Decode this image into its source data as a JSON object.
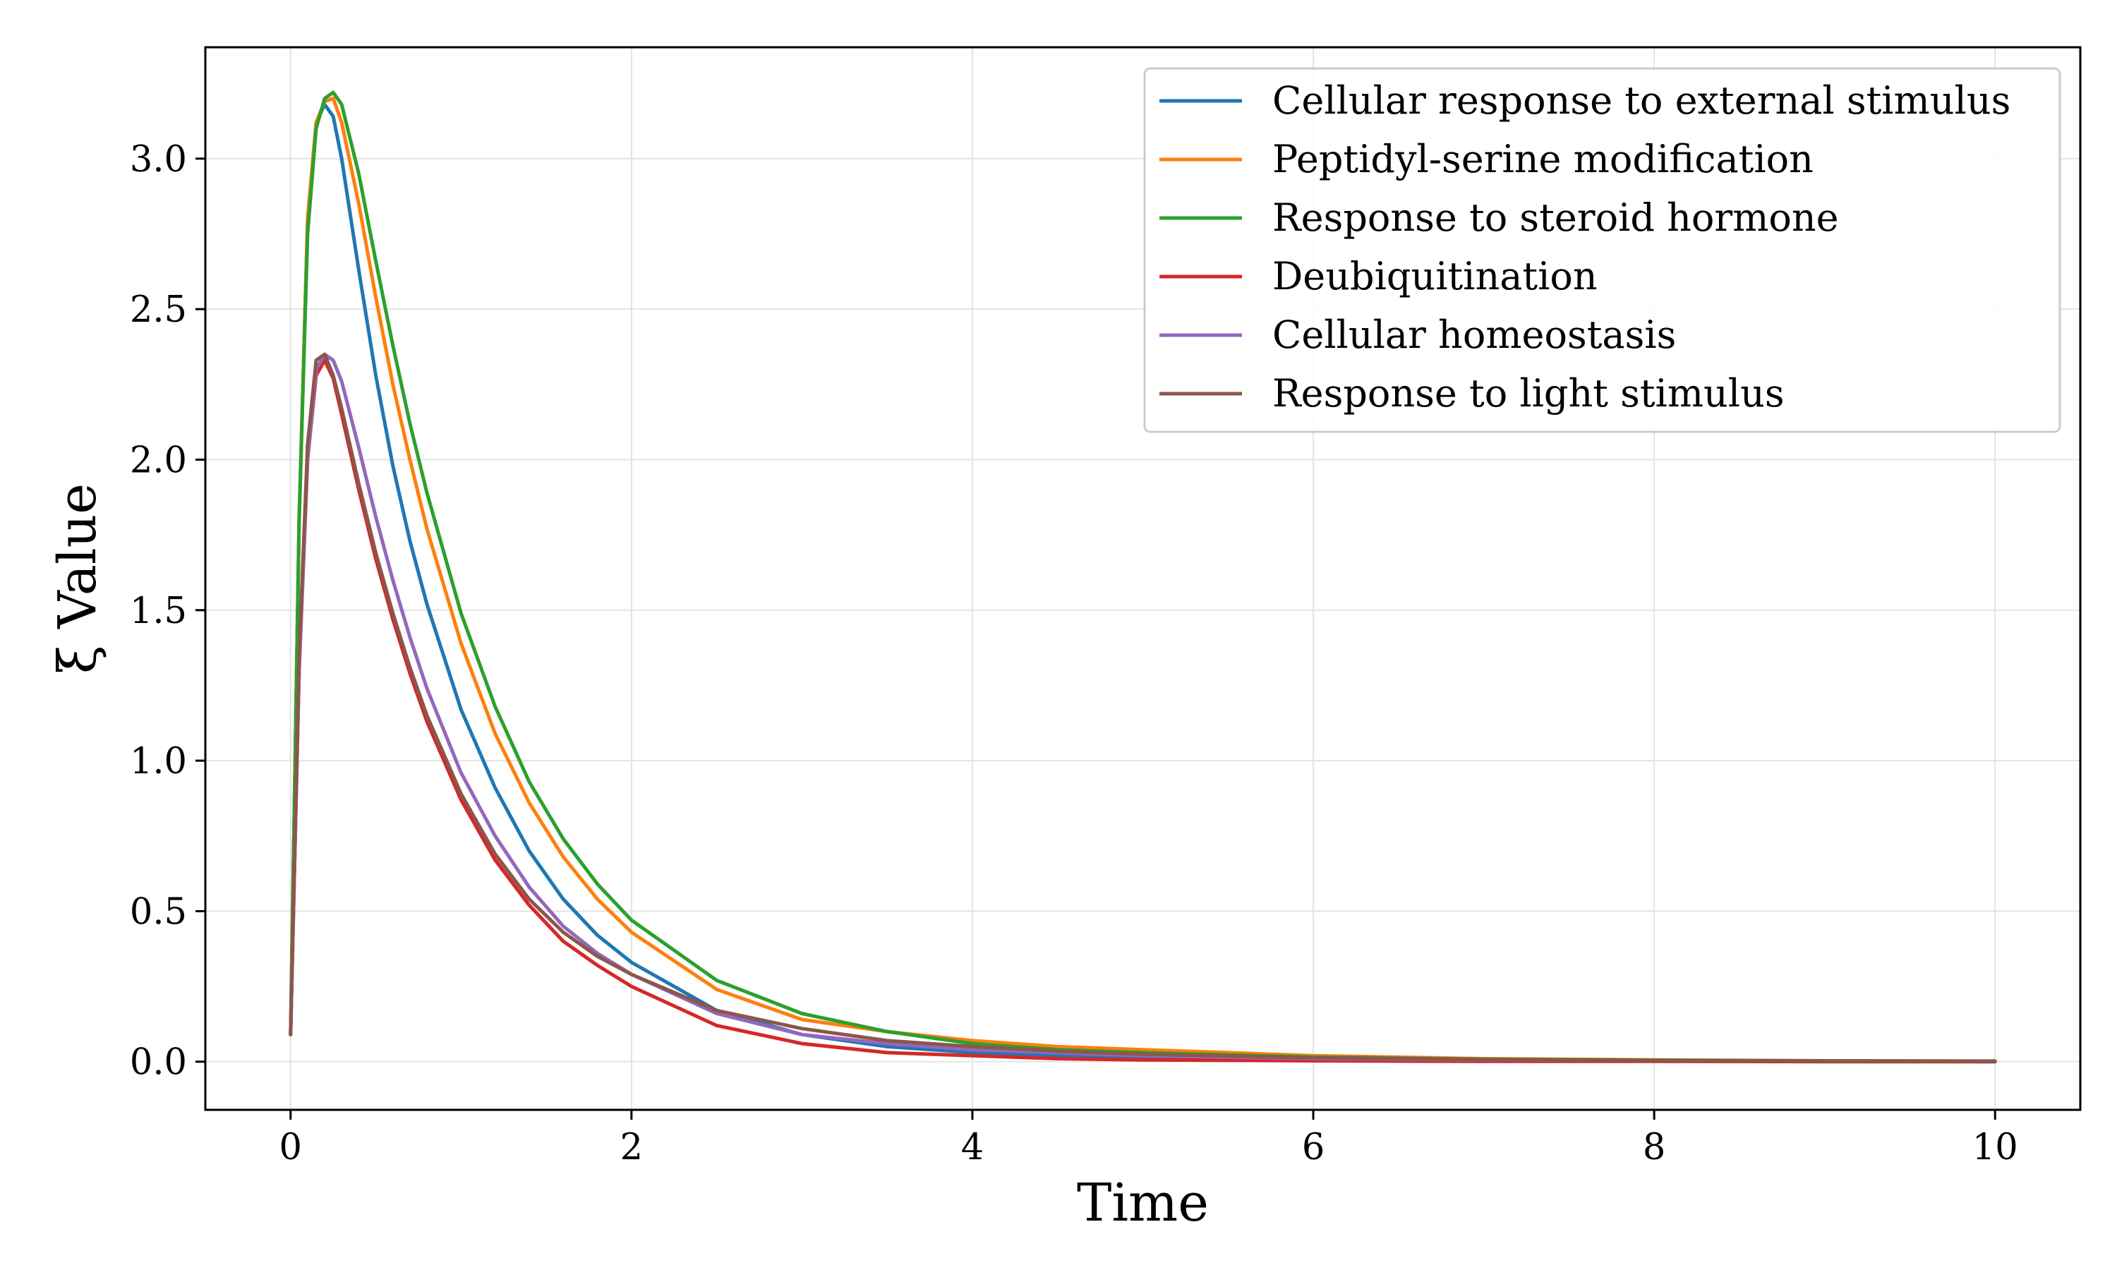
{
  "chart_data": {
    "type": "line",
    "xlabel": "Time",
    "ylabel": "ξ Value",
    "xlim": [
      -0.5,
      10.5
    ],
    "ylim": [
      -0.16,
      3.37
    ],
    "xticks": [
      0,
      2,
      4,
      6,
      8,
      10
    ],
    "xtick_labels": [
      "0",
      "2",
      "4",
      "6",
      "8",
      "10"
    ],
    "yticks": [
      0.0,
      0.5,
      1.0,
      1.5,
      2.0,
      2.5,
      3.0
    ],
    "ytick_labels": [
      "0.0",
      "0.5",
      "1.0",
      "1.5",
      "2.0",
      "2.5",
      "3.0"
    ],
    "grid": true,
    "legend_position": "top-right",
    "series": [
      {
        "name": "Cellular response to external stimulus",
        "color": "#1f77b4",
        "x": [
          0.0,
          0.05,
          0.1,
          0.15,
          0.2,
          0.25,
          0.3,
          0.4,
          0.5,
          0.6,
          0.7,
          0.8,
          1.0,
          1.2,
          1.4,
          1.6,
          1.8,
          2.0,
          2.5,
          3.0,
          3.5,
          4.0,
          4.5,
          5.0,
          6.0,
          7.0,
          8.0,
          9.0,
          10.0
        ],
        "y": [
          0.09,
          1.8,
          2.8,
          3.12,
          3.18,
          3.14,
          3.0,
          2.63,
          2.28,
          1.98,
          1.73,
          1.52,
          1.17,
          0.91,
          0.7,
          0.54,
          0.42,
          0.33,
          0.17,
          0.09,
          0.05,
          0.03,
          0.02,
          0.01,
          0.005,
          0.003,
          0.002,
          0.001,
          0.0
        ]
      },
      {
        "name": "Peptidyl-serine modification",
        "color": "#ff7f0e",
        "x": [
          0.0,
          0.05,
          0.1,
          0.15,
          0.2,
          0.25,
          0.3,
          0.4,
          0.5,
          0.6,
          0.7,
          0.8,
          1.0,
          1.2,
          1.4,
          1.6,
          1.8,
          2.0,
          2.5,
          3.0,
          3.5,
          4.0,
          4.5,
          5.0,
          6.0,
          7.0,
          8.0,
          9.0,
          10.0
        ],
        "y": [
          0.09,
          1.8,
          2.8,
          3.12,
          3.19,
          3.2,
          3.12,
          2.85,
          2.54,
          2.25,
          2.0,
          1.77,
          1.39,
          1.09,
          0.86,
          0.68,
          0.54,
          0.43,
          0.24,
          0.14,
          0.1,
          0.07,
          0.05,
          0.04,
          0.02,
          0.01,
          0.006,
          0.003,
          0.002
        ]
      },
      {
        "name": "Response to steroid hormone",
        "color": "#2ca02c",
        "x": [
          0.0,
          0.05,
          0.1,
          0.15,
          0.2,
          0.25,
          0.3,
          0.4,
          0.5,
          0.6,
          0.7,
          0.8,
          1.0,
          1.2,
          1.4,
          1.6,
          1.8,
          2.0,
          2.5,
          3.0,
          3.5,
          4.0,
          4.5,
          5.0,
          6.0,
          7.0,
          8.0,
          9.0,
          10.0
        ],
        "y": [
          0.09,
          1.8,
          2.75,
          3.1,
          3.2,
          3.22,
          3.18,
          2.95,
          2.66,
          2.38,
          2.12,
          1.89,
          1.49,
          1.18,
          0.93,
          0.74,
          0.59,
          0.47,
          0.27,
          0.16,
          0.1,
          0.06,
          0.04,
          0.03,
          0.015,
          0.008,
          0.005,
          0.003,
          0.002
        ]
      },
      {
        "name": "Deubiquitination",
        "color": "#d62728",
        "x": [
          0.0,
          0.05,
          0.1,
          0.15,
          0.2,
          0.25,
          0.3,
          0.4,
          0.5,
          0.6,
          0.7,
          0.8,
          1.0,
          1.2,
          1.4,
          1.6,
          1.8,
          2.0,
          2.5,
          3.0,
          3.5,
          4.0,
          4.5,
          5.0,
          6.0,
          7.0,
          8.0,
          9.0,
          10.0
        ],
        "y": [
          0.09,
          1.3,
          2.0,
          2.28,
          2.33,
          2.27,
          2.15,
          1.9,
          1.67,
          1.47,
          1.29,
          1.13,
          0.87,
          0.67,
          0.52,
          0.4,
          0.32,
          0.25,
          0.12,
          0.06,
          0.03,
          0.02,
          0.01,
          0.006,
          0.003,
          0.001,
          0.001,
          0.0,
          0.0
        ]
      },
      {
        "name": "Cellular homeostasis",
        "color": "#9467bd",
        "x": [
          0.0,
          0.05,
          0.1,
          0.15,
          0.2,
          0.25,
          0.3,
          0.4,
          0.5,
          0.6,
          0.7,
          0.8,
          1.0,
          1.2,
          1.4,
          1.6,
          1.8,
          2.0,
          2.5,
          3.0,
          3.5,
          4.0,
          4.5,
          5.0,
          6.0,
          7.0,
          8.0,
          9.0,
          10.0
        ],
        "y": [
          0.09,
          1.3,
          2.0,
          2.3,
          2.35,
          2.33,
          2.26,
          2.04,
          1.81,
          1.6,
          1.41,
          1.24,
          0.96,
          0.75,
          0.58,
          0.45,
          0.36,
          0.29,
          0.16,
          0.09,
          0.06,
          0.04,
          0.03,
          0.02,
          0.01,
          0.006,
          0.004,
          0.002,
          0.001
        ]
      },
      {
        "name": "Response to light stimulus",
        "color": "#8c564b",
        "x": [
          0.0,
          0.05,
          0.1,
          0.15,
          0.2,
          0.25,
          0.3,
          0.4,
          0.5,
          0.6,
          0.7,
          0.8,
          1.0,
          1.2,
          1.4,
          1.6,
          1.8,
          2.0,
          2.5,
          3.0,
          3.5,
          4.0,
          4.5,
          5.0,
          6.0,
          7.0,
          8.0,
          9.0,
          10.0
        ],
        "y": [
          0.09,
          1.35,
          2.05,
          2.33,
          2.35,
          2.28,
          2.17,
          1.92,
          1.69,
          1.49,
          1.31,
          1.15,
          0.89,
          0.69,
          0.54,
          0.43,
          0.35,
          0.29,
          0.17,
          0.11,
          0.07,
          0.05,
          0.035,
          0.025,
          0.013,
          0.007,
          0.004,
          0.002,
          0.001
        ]
      }
    ]
  }
}
